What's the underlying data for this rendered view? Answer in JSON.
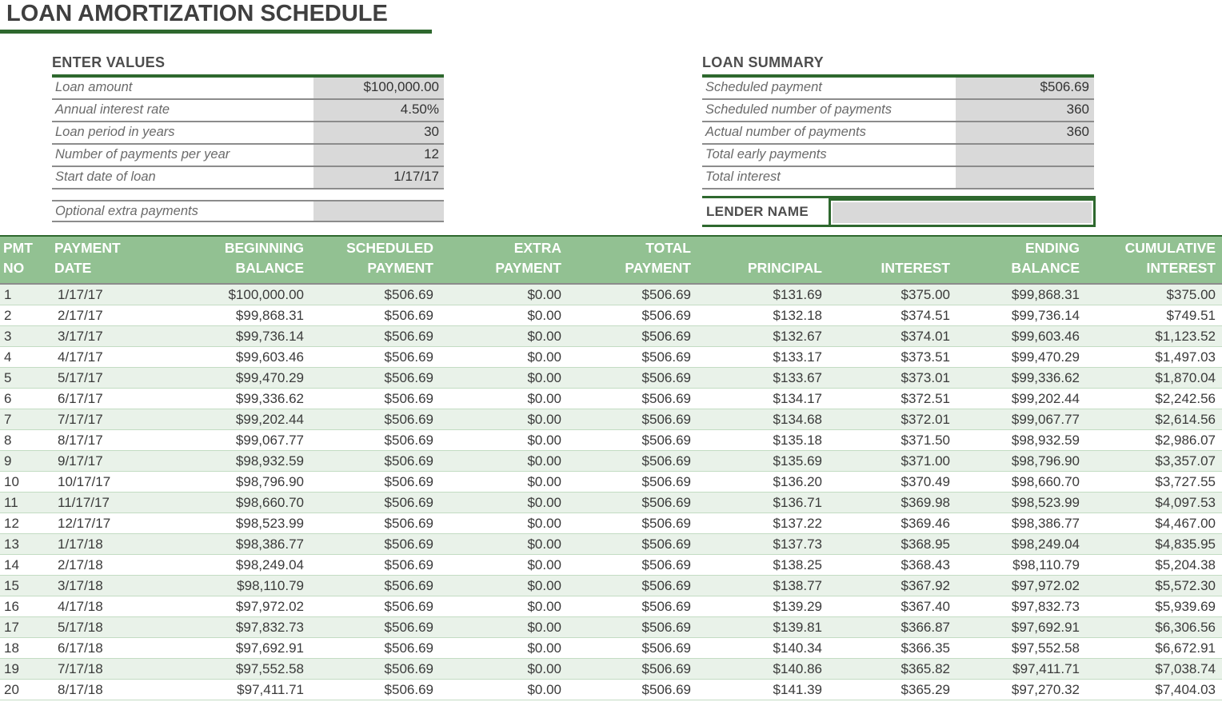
{
  "title": "LOAN AMORTIZATION SCHEDULE",
  "colors": {
    "accent_green": "#2e682e",
    "header_green": "#92c192",
    "row_alt_green": "#e9f2e9",
    "row_border_green": "#c3dcc3",
    "input_gray": "#d9d9d9"
  },
  "enter_values": {
    "heading": "ENTER VALUES",
    "rows": [
      {
        "label": "Loan amount",
        "value": "$100,000.00"
      },
      {
        "label": "Annual interest rate",
        "value": "4.50%"
      },
      {
        "label": "Loan period in years",
        "value": "30"
      },
      {
        "label": "Number of payments per year",
        "value": "12"
      },
      {
        "label": "Start date of loan",
        "value": "1/17/17"
      }
    ],
    "optional_row": {
      "label": "Optional extra payments",
      "value": ""
    }
  },
  "loan_summary": {
    "heading": "LOAN SUMMARY",
    "rows": [
      {
        "label": "Scheduled payment",
        "value": "$506.69"
      },
      {
        "label": "Scheduled number of payments",
        "value": "360"
      },
      {
        "label": "Actual number of payments",
        "value": "360"
      },
      {
        "label": "Total early payments",
        "value": ""
      },
      {
        "label": "Total interest",
        "value": ""
      }
    ]
  },
  "lender": {
    "label": "LENDER NAME",
    "value": ""
  },
  "schedule_table": {
    "headers": [
      {
        "l1": "PMT",
        "l2": "NO"
      },
      {
        "l1": "PAYMENT",
        "l2": "DATE"
      },
      {
        "l1": "BEGINNING",
        "l2": "BALANCE"
      },
      {
        "l1": "SCHEDULED",
        "l2": "PAYMENT"
      },
      {
        "l1": "EXTRA",
        "l2": "PAYMENT"
      },
      {
        "l1": "TOTAL",
        "l2": "PAYMENT"
      },
      {
        "l1": "",
        "l2": "PRINCIPAL"
      },
      {
        "l1": "",
        "l2": "INTEREST"
      },
      {
        "l1": "ENDING",
        "l2": "BALANCE"
      },
      {
        "l1": "CUMULATIVE",
        "l2": "INTEREST"
      }
    ],
    "rows": [
      [
        "1",
        "1/17/17",
        "$100,000.00",
        "$506.69",
        "$0.00",
        "$506.69",
        "$131.69",
        "$375.00",
        "$99,868.31",
        "$375.00"
      ],
      [
        "2",
        "2/17/17",
        "$99,868.31",
        "$506.69",
        "$0.00",
        "$506.69",
        "$132.18",
        "$374.51",
        "$99,736.14",
        "$749.51"
      ],
      [
        "3",
        "3/17/17",
        "$99,736.14",
        "$506.69",
        "$0.00",
        "$506.69",
        "$132.67",
        "$374.01",
        "$99,603.46",
        "$1,123.52"
      ],
      [
        "4",
        "4/17/17",
        "$99,603.46",
        "$506.69",
        "$0.00",
        "$506.69",
        "$133.17",
        "$373.51",
        "$99,470.29",
        "$1,497.03"
      ],
      [
        "5",
        "5/17/17",
        "$99,470.29",
        "$506.69",
        "$0.00",
        "$506.69",
        "$133.67",
        "$373.01",
        "$99,336.62",
        "$1,870.04"
      ],
      [
        "6",
        "6/17/17",
        "$99,336.62",
        "$506.69",
        "$0.00",
        "$506.69",
        "$134.17",
        "$372.51",
        "$99,202.44",
        "$2,242.56"
      ],
      [
        "7",
        "7/17/17",
        "$99,202.44",
        "$506.69",
        "$0.00",
        "$506.69",
        "$134.68",
        "$372.01",
        "$99,067.77",
        "$2,614.56"
      ],
      [
        "8",
        "8/17/17",
        "$99,067.77",
        "$506.69",
        "$0.00",
        "$506.69",
        "$135.18",
        "$371.50",
        "$98,932.59",
        "$2,986.07"
      ],
      [
        "9",
        "9/17/17",
        "$98,932.59",
        "$506.69",
        "$0.00",
        "$506.69",
        "$135.69",
        "$371.00",
        "$98,796.90",
        "$3,357.07"
      ],
      [
        "10",
        "10/17/17",
        "$98,796.90",
        "$506.69",
        "$0.00",
        "$506.69",
        "$136.20",
        "$370.49",
        "$98,660.70",
        "$3,727.55"
      ],
      [
        "11",
        "11/17/17",
        "$98,660.70",
        "$506.69",
        "$0.00",
        "$506.69",
        "$136.71",
        "$369.98",
        "$98,523.99",
        "$4,097.53"
      ],
      [
        "12",
        "12/17/17",
        "$98,523.99",
        "$506.69",
        "$0.00",
        "$506.69",
        "$137.22",
        "$369.46",
        "$98,386.77",
        "$4,467.00"
      ],
      [
        "13",
        "1/17/18",
        "$98,386.77",
        "$506.69",
        "$0.00",
        "$506.69",
        "$137.73",
        "$368.95",
        "$98,249.04",
        "$4,835.95"
      ],
      [
        "14",
        "2/17/18",
        "$98,249.04",
        "$506.69",
        "$0.00",
        "$506.69",
        "$138.25",
        "$368.43",
        "$98,110.79",
        "$5,204.38"
      ],
      [
        "15",
        "3/17/18",
        "$98,110.79",
        "$506.69",
        "$0.00",
        "$506.69",
        "$138.77",
        "$367.92",
        "$97,972.02",
        "$5,572.30"
      ],
      [
        "16",
        "4/17/18",
        "$97,972.02",
        "$506.69",
        "$0.00",
        "$506.69",
        "$139.29",
        "$367.40",
        "$97,832.73",
        "$5,939.69"
      ],
      [
        "17",
        "5/17/18",
        "$97,832.73",
        "$506.69",
        "$0.00",
        "$506.69",
        "$139.81",
        "$366.87",
        "$97,692.91",
        "$6,306.56"
      ],
      [
        "18",
        "6/17/18",
        "$97,692.91",
        "$506.69",
        "$0.00",
        "$506.69",
        "$140.34",
        "$366.35",
        "$97,552.58",
        "$6,672.91"
      ],
      [
        "19",
        "7/17/18",
        "$97,552.58",
        "$506.69",
        "$0.00",
        "$506.69",
        "$140.86",
        "$365.82",
        "$97,411.71",
        "$7,038.74"
      ],
      [
        "20",
        "8/17/18",
        "$97,411.71",
        "$506.69",
        "$0.00",
        "$506.69",
        "$141.39",
        "$365.29",
        "$97,270.32",
        "$7,404.03"
      ]
    ]
  }
}
